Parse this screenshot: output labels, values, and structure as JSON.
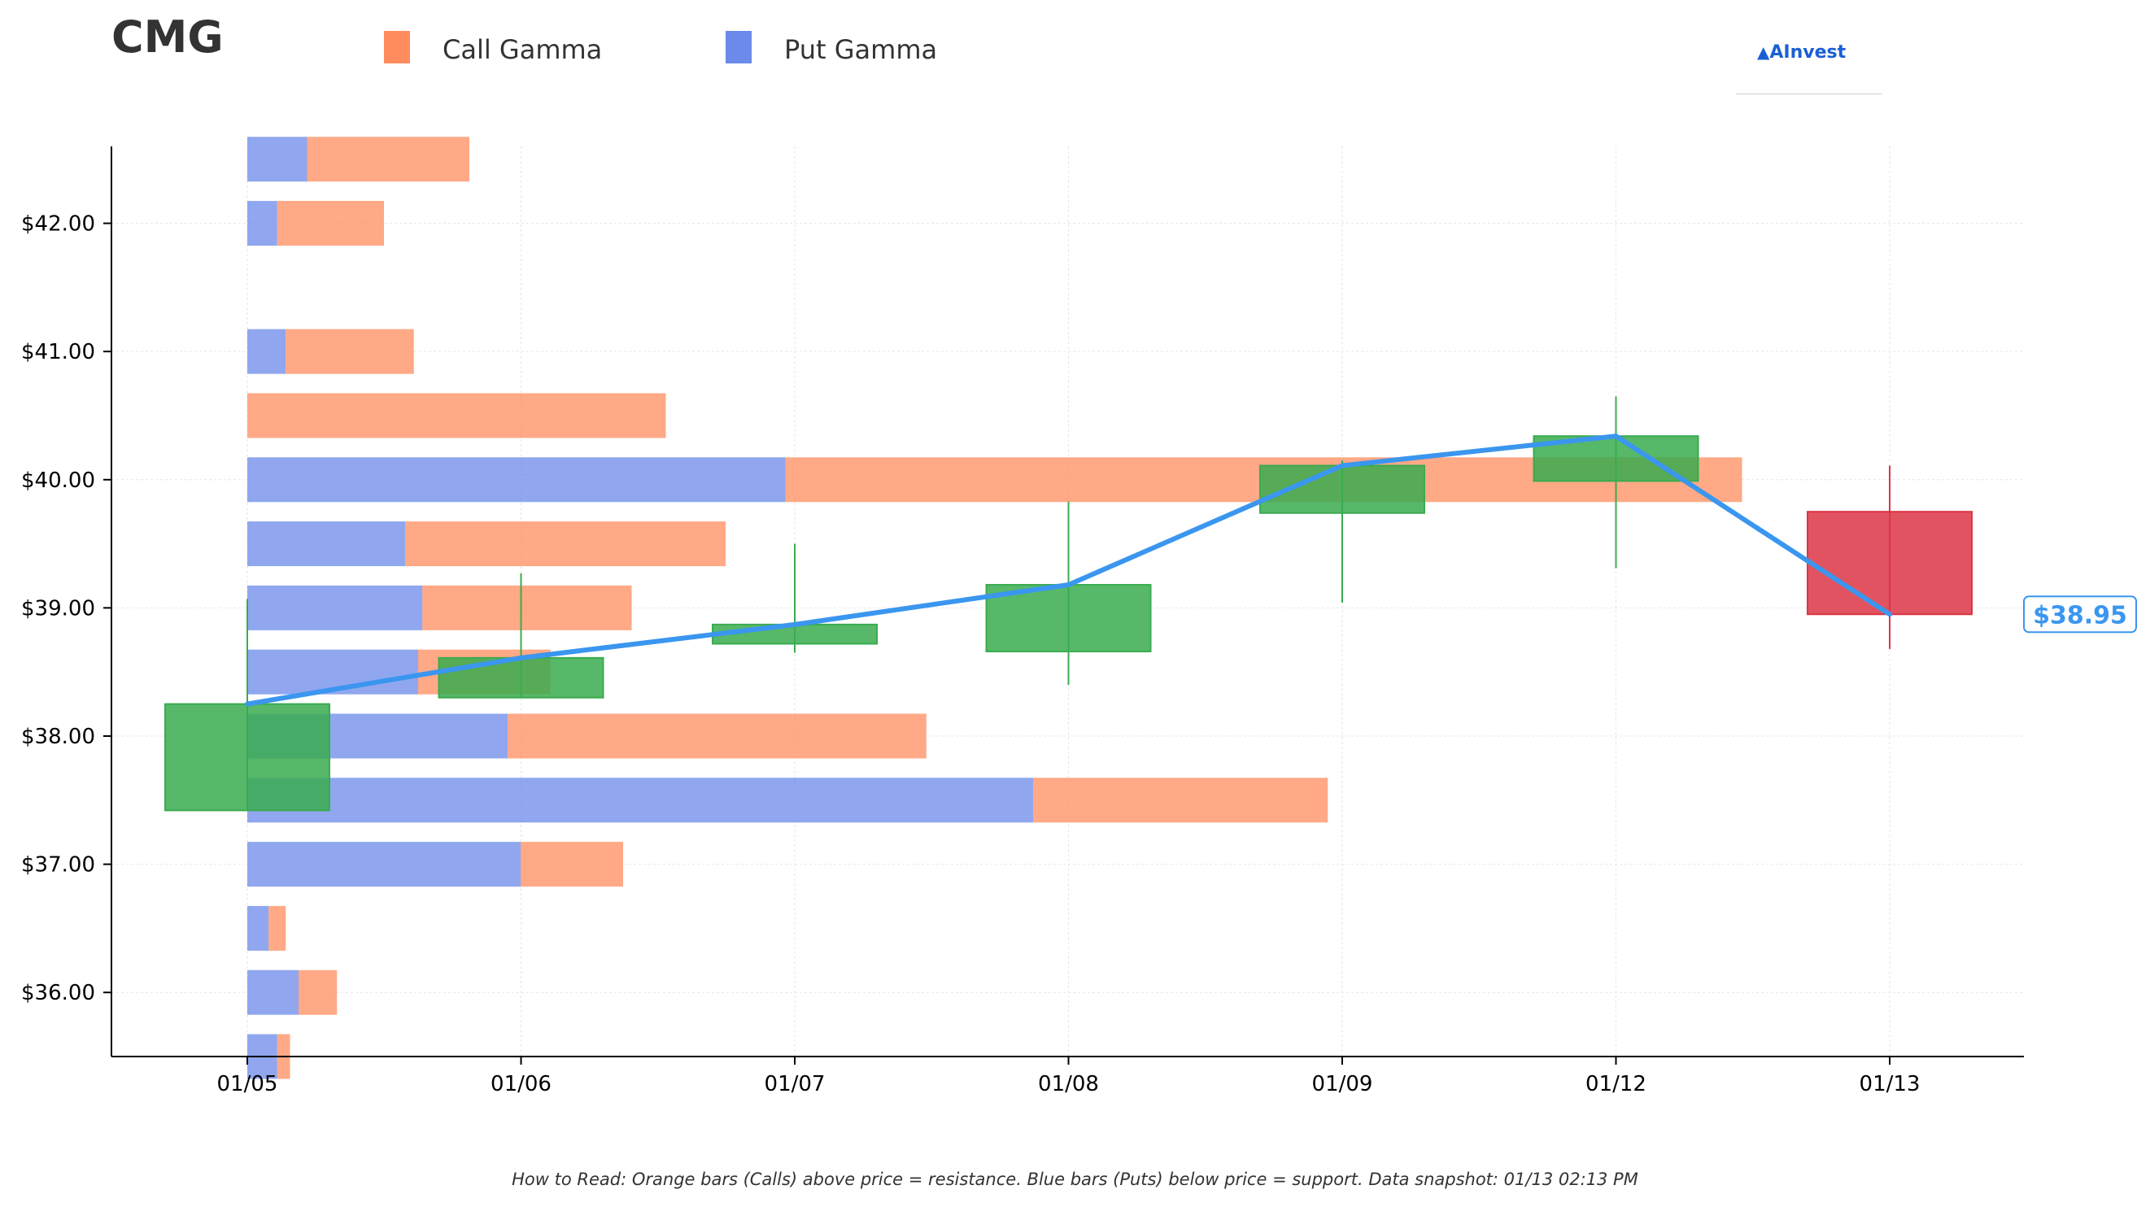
{
  "ticker": "CMG",
  "legend": {
    "call": {
      "label": "Call Gamma",
      "color": "#ff8c5e"
    },
    "put": {
      "label": "Put Gamma",
      "color": "#6b8aea"
    }
  },
  "logo_text": "AInvest",
  "footnote": "How to Read: Orange bars (Calls) above price = resistance. Blue bars (Puts) below price = support. Data snapshot: 01/13 02:13 PM",
  "chart_data": {
    "type": "bar",
    "title": "CMG",
    "x_categories": [
      "01/05",
      "01/06",
      "01/07",
      "01/08",
      "01/09",
      "01/12",
      "01/13"
    ],
    "y_tick_labels": [
      "$36.00",
      "$37.00",
      "$38.00",
      "$39.00",
      "$40.00",
      "$41.00",
      "$42.00"
    ],
    "y_tick_values": [
      36,
      37,
      38,
      39,
      40,
      41,
      42
    ],
    "ylim": [
      35.5,
      42.6
    ],
    "grid": true,
    "legend_position": "top",
    "gamma_profile": {
      "strikes": [
        35.5,
        36,
        36.5,
        37,
        37.5,
        38,
        38.5,
        39,
        39.5,
        40,
        40.5,
        41,
        42,
        42.5
      ],
      "put_gamma": [
        0.07,
        0.12,
        0.05,
        0.64,
        1.84,
        0.61,
        0.4,
        0.41,
        0.37,
        1.26,
        0.0,
        0.09,
        0.07,
        0.14
      ],
      "call_gamma": [
        0.03,
        0.09,
        0.04,
        0.24,
        0.69,
        0.98,
        0.31,
        0.49,
        0.75,
        2.24,
        0.98,
        0.3,
        0.25,
        0.38
      ],
      "colors": {
        "call": "#ff8c5e",
        "put": "#6b8aea"
      }
    },
    "candles": [
      {
        "date": "01/05",
        "open": 37.42,
        "close": 38.25,
        "high": 39.07,
        "low": 37.42
      },
      {
        "date": "01/06",
        "open": 38.3,
        "close": 38.61,
        "high": 39.27,
        "low": 38.3
      },
      {
        "date": "01/07",
        "open": 38.72,
        "close": 38.87,
        "high": 39.5,
        "low": 38.65
      },
      {
        "date": "01/08",
        "open": 38.66,
        "close": 39.18,
        "high": 39.83,
        "low": 38.4
      },
      {
        "date": "01/09",
        "open": 39.74,
        "close": 40.11,
        "high": 40.15,
        "low": 39.04
      },
      {
        "date": "01/12",
        "open": 39.99,
        "close": 40.34,
        "high": 40.65,
        "low": 39.31
      },
      {
        "date": "01/13",
        "open": 39.75,
        "close": 38.95,
        "high": 40.11,
        "low": 38.68
      }
    ],
    "close_line": {
      "x": [
        "01/05",
        "01/06",
        "01/07",
        "01/08",
        "01/09",
        "01/12",
        "01/13"
      ],
      "y": [
        38.25,
        38.61,
        38.87,
        39.18,
        40.11,
        40.34,
        38.95
      ],
      "color": "#3a96ef"
    },
    "last_price_label": "$38.95",
    "up_color": "#3aab4f",
    "down_color": "#dc3545"
  }
}
